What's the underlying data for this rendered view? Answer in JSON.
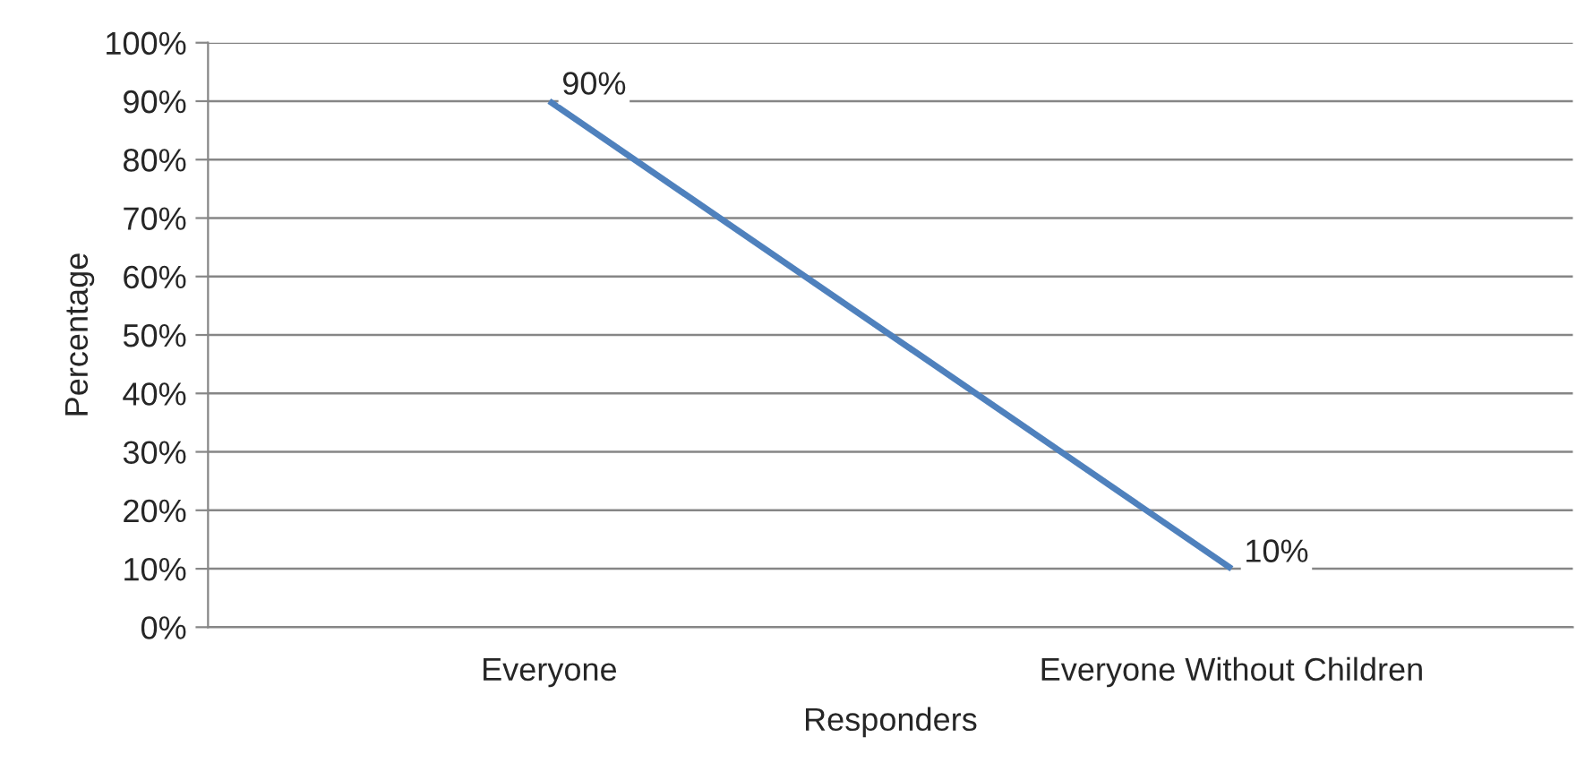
{
  "chart_data": {
    "type": "line",
    "xlabel": "Responders",
    "ylabel": "Percentage",
    "categories": [
      "Everyone",
      "Everyone Without Children"
    ],
    "series": [
      {
        "color": "#4f81bd",
        "values": [
          90,
          10
        ],
        "value_labels": [
          "90%",
          "10%"
        ]
      }
    ],
    "ylim": [
      0,
      100
    ],
    "yticks": [
      {
        "value": 0,
        "label": "0%"
      },
      {
        "value": 10,
        "label": "10%"
      },
      {
        "value": 20,
        "label": "20%"
      },
      {
        "value": 30,
        "label": "30%"
      },
      {
        "value": 40,
        "label": "40%"
      },
      {
        "value": 50,
        "label": "50%"
      },
      {
        "value": 60,
        "label": "60%"
      },
      {
        "value": 70,
        "label": "70%"
      },
      {
        "value": 80,
        "label": "80%"
      },
      {
        "value": 90,
        "label": "90%"
      },
      {
        "value": 100,
        "label": "100%"
      }
    ],
    "grid": "y",
    "marker": "none",
    "line_style": "solid"
  }
}
